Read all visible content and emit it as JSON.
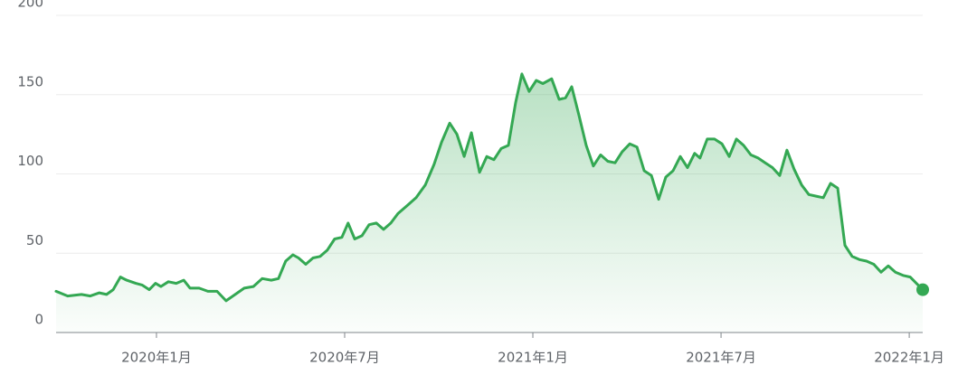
{
  "chart_data": {
    "type": "area",
    "x": [
      -3.2,
      -2.83,
      -2.39,
      -2.11,
      -1.82,
      -1.59,
      -1.38,
      -1.15,
      -0.95,
      -0.66,
      -0.46,
      -0.23,
      -0.03,
      0.14,
      0.38,
      0.63,
      0.87,
      1.07,
      1.36,
      1.64,
      1.93,
      2.22,
      2.51,
      2.8,
      3.09,
      3.37,
      3.66,
      3.89,
      4.12,
      4.35,
      4.53,
      4.76,
      4.99,
      5.22,
      5.45,
      5.68,
      5.91,
      6.11,
      6.32,
      6.55,
      6.78,
      7.01,
      7.24,
      7.47,
      7.7,
      7.99,
      8.28,
      8.57,
      8.85,
      9.09,
      9.35,
      9.58,
      9.81,
      10.04,
      10.3,
      10.53,
      10.76,
      10.99,
      11.22,
      11.45,
      11.65,
      11.88,
      12.11,
      12.32,
      12.6,
      12.84,
      13.04,
      13.24,
      13.47,
      13.7,
      13.93,
      14.16,
      14.39,
      14.62,
      14.85,
      15.09,
      15.32,
      15.55,
      15.78,
      16.01,
      16.24,
      16.47,
      16.7,
      16.93,
      17.16,
      17.33,
      17.56,
      17.79,
      18.03,
      18.26,
      18.49,
      18.72,
      18.95,
      19.18,
      19.41,
      19.64,
      19.87,
      20.1,
      20.33,
      20.57,
      20.8,
      21.03,
      21.26,
      21.49,
      21.72,
      21.95,
      22.18,
      22.41,
      22.64,
      22.87,
      23.1,
      23.33,
      23.56,
      23.8,
      24.03,
      24.43
    ],
    "series": [
      {
        "color": "#34a853",
        "values": [
          26,
          23,
          24,
          23,
          25,
          24,
          27,
          35,
          33,
          31,
          30,
          27,
          31,
          29,
          32,
          31,
          33,
          28,
          28,
          26,
          26,
          20,
          24,
          28,
          29,
          34,
          33,
          34,
          45,
          49,
          47,
          43,
          47,
          48,
          52,
          59,
          60,
          69,
          59,
          61,
          68,
          69,
          65,
          69,
          75,
          80,
          85,
          93,
          106,
          120,
          132,
          125,
          111,
          126,
          101,
          111,
          109,
          116,
          118,
          145,
          163,
          152,
          159,
          157,
          160,
          147,
          148,
          155,
          137,
          118,
          105,
          112,
          108,
          107,
          114,
          119,
          117,
          102,
          99,
          84,
          98,
          102,
          111,
          104,
          113,
          110,
          122,
          122,
          119,
          111,
          122,
          118,
          112,
          110,
          107,
          104,
          99,
          115,
          103,
          93,
          87,
          86,
          85,
          94,
          91,
          55,
          48,
          46,
          45,
          43,
          38,
          42,
          38,
          36,
          35,
          27
        ]
      }
    ],
    "xlim": [
      -3.2,
      24.43
    ],
    "xticks": [
      {
        "value": 0,
        "label": "2020年1月"
      },
      {
        "value": 6,
        "label": "2020年7月"
      },
      {
        "value": 12,
        "label": "2021年1月"
      },
      {
        "value": 18,
        "label": "2021年7月"
      },
      {
        "value": 24,
        "label": "2022年1月"
      }
    ],
    "ylim": [
      0,
      200
    ],
    "yticks": [
      0,
      50,
      100,
      150,
      200
    ],
    "grid": true
  }
}
